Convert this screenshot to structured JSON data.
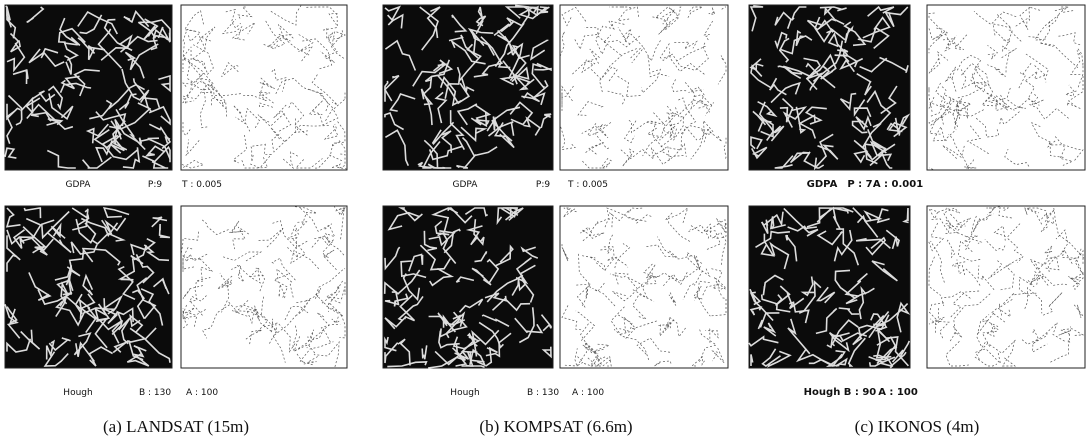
{
  "panels": [
    {
      "caption": "(a) LANDSAT (15m)",
      "rows": [
        {
          "labels": [
            "GDPA",
            "P:9",
            "T : 0.005"
          ]
        },
        {
          "labels": [
            "Hough",
            "B : 130",
            "A : 100"
          ]
        }
      ]
    },
    {
      "caption": "(b) KOMPSAT (6.6m)",
      "rows": [
        {
          "labels": [
            "GDPA",
            "P:9",
            "T : 0.005"
          ]
        },
        {
          "labels": [
            "Hough",
            "B : 130",
            "A : 100"
          ]
        }
      ]
    },
    {
      "caption": "(c) IKONOS (4m)",
      "rows": [
        {
          "labels": [
            "GDPA",
            "P : 7",
            "A : 0.001"
          ]
        },
        {
          "labels": [
            "Hough",
            "B : 90",
            "A : 100"
          ]
        }
      ]
    }
  ]
}
